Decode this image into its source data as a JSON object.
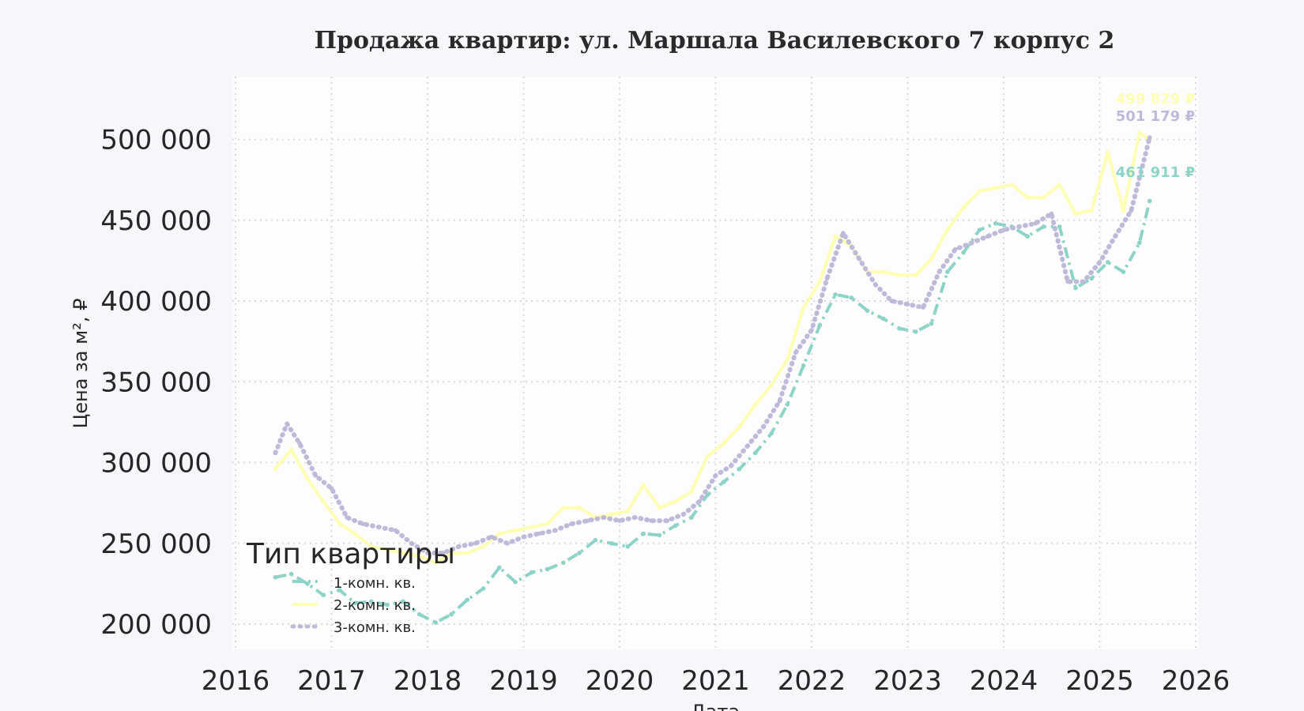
{
  "chart_data": {
    "type": "line",
    "title": "Продажа квартир: ул. Маршала Василевского 7 корпус 2",
    "xlabel": "Дата",
    "ylabel": "Цена за м², ₽",
    "xlim": [
      "2016-01-01",
      "2026-01-01"
    ],
    "ylim": [
      190000,
      535000
    ],
    "x_tick_labels": [
      "2016",
      "2017",
      "2018",
      "2019",
      "2020",
      "2021",
      "2022",
      "2023",
      "2024",
      "2025",
      "2026"
    ],
    "y_tick_labels": [
      "200 000",
      "250 000",
      "300 000",
      "350 000",
      "400 000",
      "450 000",
      "500 000"
    ],
    "y_ticks": [
      200000,
      250000,
      300000,
      350000,
      400000,
      450000,
      500000
    ],
    "grid": true,
    "legend_title": "Тип квартиры",
    "legend_position": "bottom-left",
    "series": [
      {
        "name": "1-комн. кв.",
        "color": "#8dd3c7",
        "dash": "dashdot",
        "end_label": "461 911 ₽",
        "points": [
          [
            "2016-06-01",
            229000
          ],
          [
            "2016-08-01",
            231000
          ],
          [
            "2016-10-01",
            225000
          ],
          [
            "2016-12-01",
            218000
          ],
          [
            "2017-02-01",
            221000
          ],
          [
            "2017-04-01",
            213000
          ],
          [
            "2017-06-01",
            214000
          ],
          [
            "2017-08-01",
            212000
          ],
          [
            "2017-10-01",
            214000
          ],
          [
            "2017-12-01",
            206000
          ],
          [
            "2018-02-01",
            201000
          ],
          [
            "2018-04-01",
            206000
          ],
          [
            "2018-06-01",
            215000
          ],
          [
            "2018-08-01",
            222000
          ],
          [
            "2018-10-01",
            235000
          ],
          [
            "2018-12-01",
            226000
          ],
          [
            "2019-02-01",
            232000
          ],
          [
            "2019-04-01",
            234000
          ],
          [
            "2019-06-01",
            238000
          ],
          [
            "2019-08-01",
            244000
          ],
          [
            "2019-10-01",
            252000
          ],
          [
            "2019-12-01",
            250000
          ],
          [
            "2020-02-01",
            248000
          ],
          [
            "2020-04-01",
            256000
          ],
          [
            "2020-06-01",
            255000
          ],
          [
            "2020-08-01",
            261000
          ],
          [
            "2020-10-01",
            266000
          ],
          [
            "2020-12-01",
            280000
          ],
          [
            "2021-02-01",
            288000
          ],
          [
            "2021-04-01",
            296000
          ],
          [
            "2021-06-01",
            306000
          ],
          [
            "2021-08-01",
            318000
          ],
          [
            "2021-10-01",
            336000
          ],
          [
            "2021-12-01",
            360000
          ],
          [
            "2022-02-01",
            385000
          ],
          [
            "2022-04-01",
            404000
          ],
          [
            "2022-06-01",
            402000
          ],
          [
            "2022-08-01",
            394000
          ],
          [
            "2022-10-01",
            389000
          ],
          [
            "2022-12-01",
            383000
          ],
          [
            "2023-02-01",
            381000
          ],
          [
            "2023-04-01",
            386000
          ],
          [
            "2023-06-01",
            418000
          ],
          [
            "2023-08-01",
            430000
          ],
          [
            "2023-10-01",
            444000
          ],
          [
            "2023-12-01",
            448000
          ],
          [
            "2024-02-01",
            446000
          ],
          [
            "2024-04-01",
            440000
          ],
          [
            "2024-06-01",
            446000
          ],
          [
            "2024-08-01",
            446000
          ],
          [
            "2024-10-01",
            408000
          ],
          [
            "2024-12-01",
            414000
          ],
          [
            "2025-02-01",
            424000
          ],
          [
            "2025-04-01",
            418000
          ],
          [
            "2025-06-01",
            436000
          ],
          [
            "2025-07-10",
            461911
          ]
        ]
      },
      {
        "name": "2-комн. кв.",
        "color": "#ffffb3",
        "dash": "solid",
        "end_label": "499 829 ₽",
        "points": [
          [
            "2016-06-01",
            296000
          ],
          [
            "2016-08-01",
            308000
          ],
          [
            "2016-10-01",
            290000
          ],
          [
            "2016-12-01",
            276000
          ],
          [
            "2017-02-01",
            262000
          ],
          [
            "2017-04-01",
            256000
          ],
          [
            "2017-06-01",
            248000
          ],
          [
            "2017-08-01",
            246000
          ],
          [
            "2017-10-01",
            244000
          ],
          [
            "2017-12-01",
            242000
          ],
          [
            "2018-02-01",
            238000
          ],
          [
            "2018-04-01",
            244000
          ],
          [
            "2018-06-01",
            244000
          ],
          [
            "2018-08-01",
            248000
          ],
          [
            "2018-10-01",
            256000
          ],
          [
            "2018-12-01",
            258000
          ],
          [
            "2019-02-01",
            260000
          ],
          [
            "2019-04-01",
            262000
          ],
          [
            "2019-06-01",
            272000
          ],
          [
            "2019-08-01",
            272000
          ],
          [
            "2019-10-01",
            266000
          ],
          [
            "2019-12-01",
            268000
          ],
          [
            "2020-02-01",
            270000
          ],
          [
            "2020-04-01",
            286000
          ],
          [
            "2020-06-01",
            272000
          ],
          [
            "2020-08-01",
            276000
          ],
          [
            "2020-10-01",
            282000
          ],
          [
            "2020-12-01",
            304000
          ],
          [
            "2021-02-01",
            312000
          ],
          [
            "2021-04-01",
            322000
          ],
          [
            "2021-06-01",
            336000
          ],
          [
            "2021-08-01",
            348000
          ],
          [
            "2021-10-01",
            364000
          ],
          [
            "2021-12-01",
            396000
          ],
          [
            "2022-02-01",
            412000
          ],
          [
            "2022-04-01",
            440000
          ],
          [
            "2022-06-01",
            434000
          ],
          [
            "2022-08-01",
            418000
          ],
          [
            "2022-10-01",
            418000
          ],
          [
            "2022-12-01",
            416000
          ],
          [
            "2023-02-01",
            416000
          ],
          [
            "2023-04-01",
            426000
          ],
          [
            "2023-06-01",
            444000
          ],
          [
            "2023-08-01",
            458000
          ],
          [
            "2023-10-01",
            468000
          ],
          [
            "2023-12-01",
            470000
          ],
          [
            "2024-02-01",
            472000
          ],
          [
            "2024-04-01",
            464000
          ],
          [
            "2024-06-01",
            464000
          ],
          [
            "2024-08-01",
            472000
          ],
          [
            "2024-10-01",
            454000
          ],
          [
            "2024-12-01",
            456000
          ],
          [
            "2025-02-01",
            492000
          ],
          [
            "2025-04-01",
            456000
          ],
          [
            "2025-06-01",
            504000
          ],
          [
            "2025-07-10",
            499829
          ]
        ]
      },
      {
        "name": "3-комн. кв.",
        "color": "#bebada",
        "dash": "dotted",
        "end_label": "501 179 ₽",
        "points": [
          [
            "2016-06-01",
            306000
          ],
          [
            "2016-07-15",
            324000
          ],
          [
            "2016-09-01",
            312000
          ],
          [
            "2016-11-01",
            292000
          ],
          [
            "2017-01-01",
            284000
          ],
          [
            "2017-03-01",
            266000
          ],
          [
            "2017-05-01",
            262000
          ],
          [
            "2017-07-01",
            260000
          ],
          [
            "2017-09-01",
            258000
          ],
          [
            "2017-11-01",
            250000
          ],
          [
            "2018-01-01",
            244000
          ],
          [
            "2018-03-01",
            244000
          ],
          [
            "2018-05-01",
            248000
          ],
          [
            "2018-07-01",
            250000
          ],
          [
            "2018-09-01",
            254000
          ],
          [
            "2018-11-01",
            250000
          ],
          [
            "2019-01-01",
            254000
          ],
          [
            "2019-03-01",
            256000
          ],
          [
            "2019-05-01",
            258000
          ],
          [
            "2019-07-01",
            262000
          ],
          [
            "2019-09-01",
            264000
          ],
          [
            "2019-11-01",
            266000
          ],
          [
            "2020-01-01",
            264000
          ],
          [
            "2020-03-01",
            266000
          ],
          [
            "2020-05-01",
            264000
          ],
          [
            "2020-07-01",
            264000
          ],
          [
            "2020-09-01",
            268000
          ],
          [
            "2020-11-01",
            276000
          ],
          [
            "2021-01-01",
            292000
          ],
          [
            "2021-03-01",
            298000
          ],
          [
            "2021-05-01",
            310000
          ],
          [
            "2021-07-01",
            322000
          ],
          [
            "2021-09-01",
            338000
          ],
          [
            "2021-11-01",
            368000
          ],
          [
            "2022-01-01",
            382000
          ],
          [
            "2022-03-01",
            414000
          ],
          [
            "2022-05-01",
            442000
          ],
          [
            "2022-07-01",
            426000
          ],
          [
            "2022-09-01",
            410000
          ],
          [
            "2022-11-01",
            400000
          ],
          [
            "2023-01-01",
            398000
          ],
          [
            "2023-03-01",
            396000
          ],
          [
            "2023-05-01",
            418000
          ],
          [
            "2023-07-01",
            432000
          ],
          [
            "2023-09-01",
            436000
          ],
          [
            "2023-11-01",
            440000
          ],
          [
            "2024-01-01",
            444000
          ],
          [
            "2024-03-01",
            446000
          ],
          [
            "2024-05-01",
            448000
          ],
          [
            "2024-07-01",
            454000
          ],
          [
            "2024-09-01",
            412000
          ],
          [
            "2024-11-01",
            412000
          ],
          [
            "2025-01-01",
            424000
          ],
          [
            "2025-03-01",
            440000
          ],
          [
            "2025-05-01",
            456000
          ],
          [
            "2025-07-10",
            501179
          ]
        ]
      }
    ]
  }
}
